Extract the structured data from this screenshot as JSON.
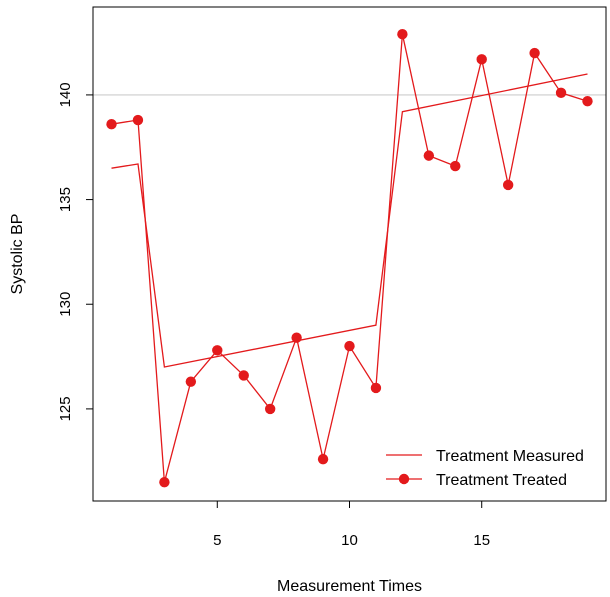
{
  "chart_data": {
    "type": "line",
    "xlabel": "Measurement Times",
    "ylabel": "Systolic BP",
    "xlim": [
      0.3,
      19.7
    ],
    "ylim": [
      120.6,
      144.2
    ],
    "x_ticks": [
      5,
      10,
      15
    ],
    "y_ticks": [
      125,
      130,
      135,
      140
    ],
    "reference_line": 140,
    "colors": {
      "series": "#e31a1c",
      "reference": "#cccccc"
    },
    "legend_position": "bottom-right",
    "series": [
      {
        "name": "Treatment Measured",
        "style": "line",
        "x": [
          1,
          2,
          3,
          11,
          12,
          19
        ],
        "values": [
          136.5,
          136.7,
          127.0,
          129.0,
          139.2,
          141.0
        ]
      },
      {
        "name": "Treatment Treated",
        "style": "line-points",
        "x": [
          1,
          2,
          3,
          4,
          5,
          6,
          7,
          8,
          9,
          10,
          11,
          12,
          13,
          14,
          15,
          16,
          17,
          18,
          19
        ],
        "values": [
          138.6,
          138.8,
          121.5,
          126.3,
          127.8,
          126.6,
          125.0,
          128.4,
          122.6,
          128.0,
          126.0,
          142.9,
          137.1,
          136.6,
          141.7,
          135.7,
          142.0,
          140.1,
          139.7
        ]
      }
    ]
  }
}
